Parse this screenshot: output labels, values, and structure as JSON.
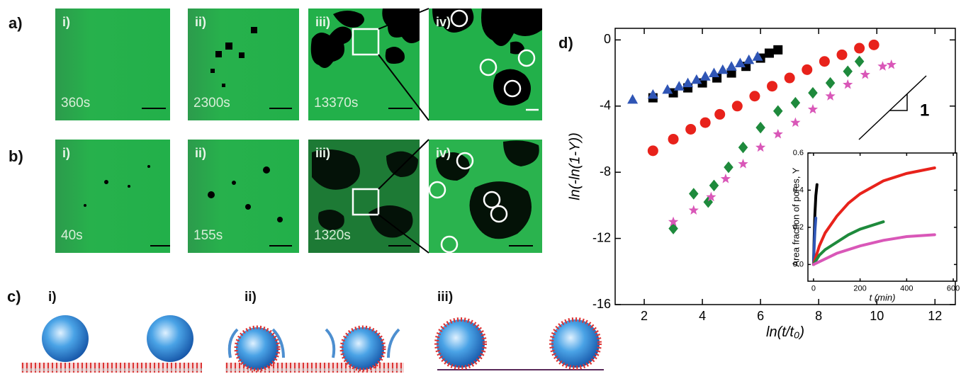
{
  "panels": {
    "a": {
      "label": "a)",
      "images": [
        {
          "index": "i)",
          "time": "360s"
        },
        {
          "index": "ii)",
          "time": "2300s"
        },
        {
          "index": "iii)",
          "time": "13370s"
        },
        {
          "index": "iv)"
        }
      ]
    },
    "b": {
      "label": "b)",
      "images": [
        {
          "index": "i)",
          "time": "40s"
        },
        {
          "index": "ii)",
          "time": "155s"
        },
        {
          "index": "iii)",
          "time": "1320s"
        },
        {
          "index": "iv)"
        }
      ]
    },
    "c": {
      "label": "c)",
      "steps": [
        "i)",
        "ii)",
        "iii)"
      ]
    }
  },
  "chart_data": [
    {
      "type": "scatter",
      "panel_label": "d)",
      "x_label": "ln(t/t₀)",
      "y_label": "ln(-ln(1-Y))",
      "xlim": [
        1,
        12.7
      ],
      "xticks": [
        2,
        4,
        6,
        8,
        10,
        12
      ],
      "ylim": [
        -16,
        0.7
      ],
      "yticks": [
        0,
        -4,
        -8,
        -12,
        -16
      ],
      "annotations": [
        "1"
      ],
      "series": [
        {
          "color": "#000000",
          "marker": "square",
          "x": [
            2.3,
            3,
            3.5,
            4,
            4.5,
            5,
            5.5,
            6,
            6.3,
            6.6
          ],
          "values": [
            -3.5,
            -3.2,
            -2.9,
            -2.6,
            -2.3,
            -2.0,
            -1.6,
            -1.1,
            -0.8,
            -0.6
          ]
        },
        {
          "color": "#2f55b5",
          "marker": "triangle",
          "x": [
            1.6,
            2.3,
            2.8,
            3.2,
            3.5,
            3.8,
            4.1,
            4.4,
            4.7,
            5.0,
            5.3,
            5.6,
            5.9
          ],
          "values": [
            -3.6,
            -3.3,
            -3.0,
            -2.8,
            -2.6,
            -2.4,
            -2.2,
            -2.0,
            -1.8,
            -1.6,
            -1.4,
            -1.2,
            -1.0
          ]
        },
        {
          "color": "#e8221b",
          "marker": "circle",
          "x": [
            2.3,
            3,
            3.6,
            4.1,
            4.6,
            5.2,
            5.8,
            6.4,
            7,
            7.6,
            8.2,
            8.8,
            9.4,
            9.9
          ],
          "values": [
            -6.7,
            -6.0,
            -5.4,
            -5.0,
            -4.5,
            -4.0,
            -3.4,
            -2.8,
            -2.3,
            -1.8,
            -1.3,
            -0.9,
            -0.5,
            -0.3
          ]
        },
        {
          "color": "#1e8a3c",
          "marker": "diamond",
          "x": [
            3,
            3.7,
            4.2,
            4.4,
            4.9,
            5.4,
            6,
            6.6,
            7.2,
            7.8,
            8.4,
            9,
            9.4
          ],
          "values": [
            -11.4,
            -9.3,
            -9.8,
            -8.8,
            -7.7,
            -6.5,
            -5.3,
            -4.3,
            -3.8,
            -3.2,
            -2.6,
            -1.9,
            -1.3
          ]
        },
        {
          "color": "#d957b8",
          "marker": "star",
          "x": [
            3,
            3.7,
            4.3,
            4.8,
            5.4,
            6,
            6.6,
            7.2,
            7.8,
            8.4,
            9,
            9.6,
            10.2,
            10.5
          ],
          "values": [
            -11.0,
            -10.3,
            -9.5,
            -8.4,
            -7.5,
            -6.5,
            -5.7,
            -5.0,
            -4.2,
            -3.4,
            -2.7,
            -2.1,
            -1.6,
            -1.5
          ]
        }
      ]
    },
    {
      "type": "line",
      "x_label": "t (min)",
      "y_label": "Area fraction of pores, Y",
      "xlim": [
        -24,
        615
      ],
      "xticks": [
        0,
        200,
        400,
        600
      ],
      "ylim": [
        -0.09,
        0.6
      ],
      "yticks": [
        {
          "value": 0,
          "label": "0.0"
        },
        0.2,
        0.4,
        0.6
      ],
      "series": [
        {
          "color": "#000000",
          "x": [
            0,
            3,
            6,
            10,
            15
          ],
          "values": [
            0,
            0.15,
            0.27,
            0.37,
            0.43
          ]
        },
        {
          "color": "#2f55b5",
          "x": [
            0,
            3,
            6,
            10
          ],
          "values": [
            0,
            0.1,
            0.18,
            0.25
          ]
        },
        {
          "color": "#e8221b",
          "x": [
            0,
            25,
            50,
            100,
            150,
            200,
            300,
            400,
            520
          ],
          "values": [
            0,
            0.1,
            0.17,
            0.26,
            0.33,
            0.38,
            0.45,
            0.49,
            0.52
          ]
        },
        {
          "color": "#1e8a3c",
          "x": [
            0,
            25,
            50,
            100,
            150,
            200,
            250,
            300
          ],
          "values": [
            0,
            0.05,
            0.08,
            0.12,
            0.16,
            0.19,
            0.21,
            0.23
          ]
        },
        {
          "color": "#d957b8",
          "x": [
            0,
            50,
            100,
            200,
            300,
            400,
            520
          ],
          "values": [
            0,
            0.03,
            0.06,
            0.1,
            0.13,
            0.15,
            0.16
          ]
        }
      ]
    }
  ]
}
